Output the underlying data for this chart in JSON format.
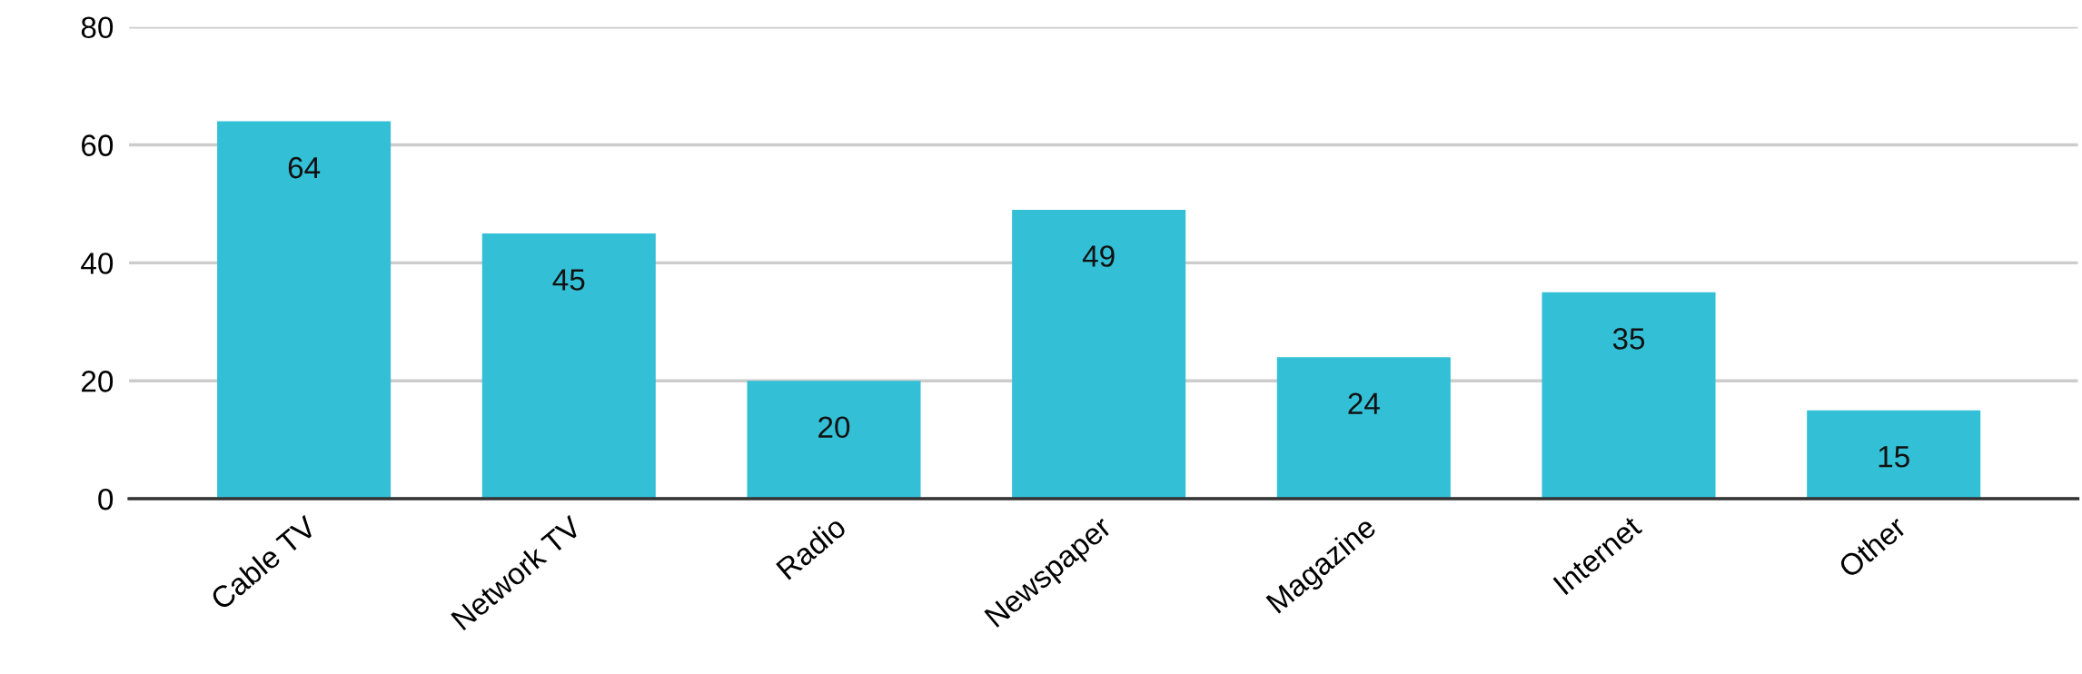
{
  "chart_data": {
    "type": "bar",
    "categories": [
      "Cable TV",
      "Network TV",
      "Radio",
      "Newspaper",
      "Magazine",
      "Internet",
      "Other"
    ],
    "values": [
      64,
      45,
      20,
      49,
      24,
      35,
      15
    ],
    "color": "#33bfd6",
    "ylim": [
      0,
      80
    ],
    "yticks": [
      0,
      20,
      40,
      60,
      80
    ],
    "grid": "y",
    "data_labels": true
  }
}
